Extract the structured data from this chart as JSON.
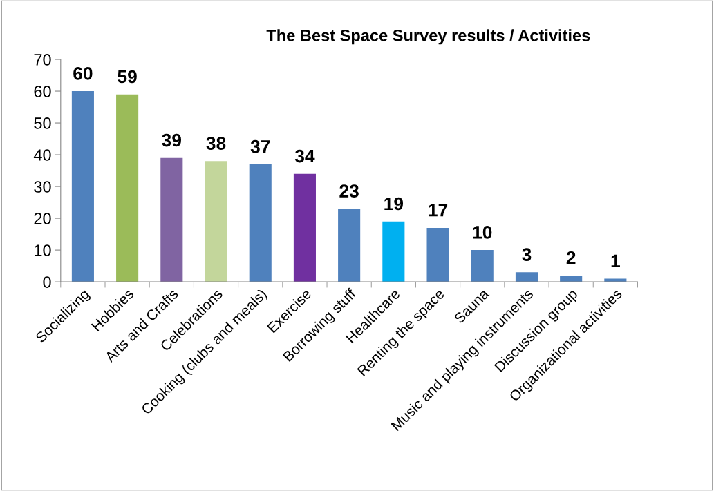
{
  "chart_data": {
    "type": "bar",
    "title": "The Best Space Survey results / Activities",
    "categories": [
      "Socializing",
      "Hobbies",
      "Arts and Crafts",
      "Celebrations",
      "Cooking (clubs and meals)",
      "Exercise",
      "Borrowing stuff",
      "Healthcare",
      "Renting the space",
      "Sauna",
      "Music and playing instruments",
      "Discussion group",
      "Organizational activities"
    ],
    "values": [
      60,
      59,
      39,
      38,
      37,
      34,
      23,
      19,
      17,
      10,
      3,
      2,
      1
    ],
    "colors": [
      "#4f81bd",
      "#9bbb59",
      "#8064a2",
      "#c3d69b",
      "#4f81bd",
      "#7030a0",
      "#4f81bd",
      "#00b0f0",
      "#4f81bd",
      "#4f81bd",
      "#4f81bd",
      "#4f81bd",
      "#4f81bd"
    ],
    "ylim": [
      0,
      70
    ],
    "yticks": [
      0,
      10,
      20,
      30,
      40,
      50,
      60,
      70
    ],
    "data_labels": true,
    "grid": false,
    "legend": false
  }
}
